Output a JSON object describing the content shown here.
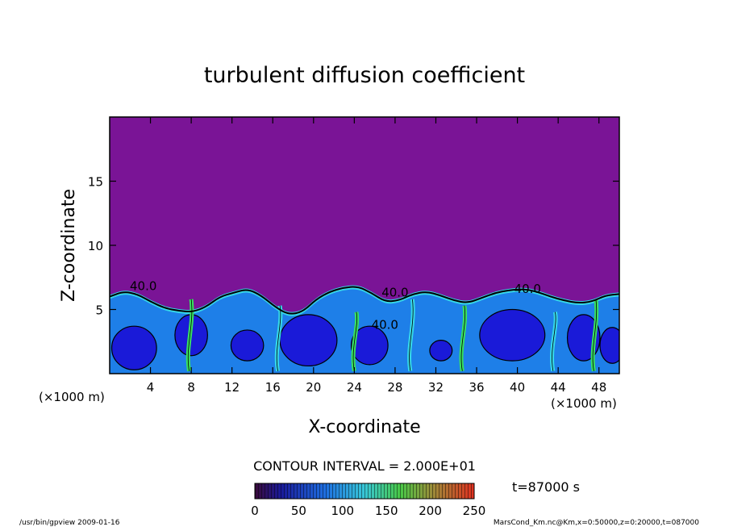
{
  "chart_data": {
    "type": "heatmap",
    "title": "turbulent diffusion coefficient",
    "xlabel": "X-coordinate",
    "ylabel": "Z-coordinate",
    "x_unit": "(×1000 m)",
    "y_unit": "(×1000 m)",
    "xlim": [
      0,
      50
    ],
    "ylim": [
      0,
      20
    ],
    "x_ticks": [
      "4",
      "8",
      "12",
      "16",
      "20",
      "24",
      "28",
      "32",
      "36",
      "40",
      "44",
      "48"
    ],
    "y_ticks": [
      "5",
      "10",
      "15"
    ],
    "contour_interval": "CONTOUR INTERVAL = 2.000E+01",
    "time_label": "t=87000 s",
    "colorbar": {
      "min": 0,
      "max": 250,
      "ticks": [
        "0",
        "50",
        "100",
        "150",
        "200",
        "250"
      ]
    },
    "contour_labels": [
      {
        "text": "40.0",
        "x": 3.3,
        "z": 6.5
      },
      {
        "text": "40.0",
        "x": 28.0,
        "z": 6.0
      },
      {
        "text": "40.0",
        "x": 27.0,
        "z": 3.5
      },
      {
        "text": "40.0",
        "x": 41.0,
        "z": 6.3
      }
    ],
    "boundary_layer_top_z": [
      6.0,
      6.4,
      6.2,
      5.6,
      5.1,
      4.9,
      4.8,
      5.2,
      6.0,
      6.3,
      6.6,
      6.1,
      5.2,
      4.6,
      4.8,
      5.8,
      6.4,
      6.7,
      6.8,
      6.3,
      5.6,
      5.7,
      6.2,
      6.4,
      6.1,
      5.7,
      5.5,
      5.9,
      6.3,
      6.5,
      6.6,
      6.4,
      6.0,
      5.7,
      5.5,
      5.6,
      6.1,
      6.2
    ],
    "colors": {
      "background_field": "#7a1496",
      "low": "#1a1ad8",
      "mid": "#1e7fe8",
      "high": "#36d8e8",
      "peak": "#38e060"
    }
  },
  "footer": {
    "left": "/usr/bin/gpview   2009-01-16",
    "right": "MarsCond_Km.nc@Km,x=0:50000,z=0:20000,t=087000"
  }
}
